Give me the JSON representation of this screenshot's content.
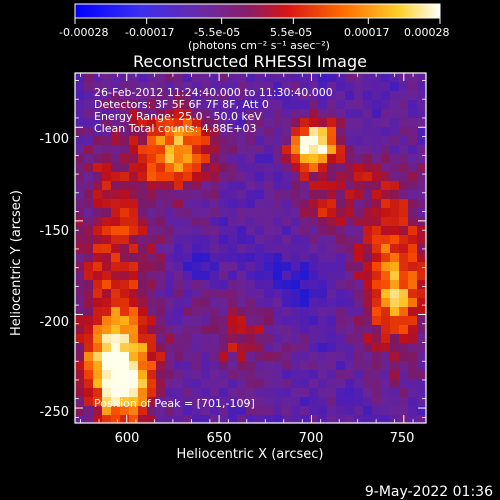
{
  "colorbar": {
    "tick_labels": [
      "-0.00028",
      "-0.00017",
      "-5.5e-05",
      "5.5e-05",
      "0.00017",
      "0.00028"
    ],
    "tick_values": [
      -0.00028,
      -0.00017,
      -5.5e-05,
      5.5e-05,
      0.00017,
      0.00028
    ],
    "range": [
      -0.00028,
      0.00028
    ],
    "units_label": "(photons cm⁻² s⁻¹ asec⁻²)",
    "colors": [
      "#0000ff",
      "#5a2bd8",
      "#7a2a9c",
      "#d11f1f",
      "#ff6a00",
      "#ffe04a",
      "#ffffff"
    ]
  },
  "title": "Reconstructed RHESSI Image",
  "info_lines": [
    "26-Feb-2012 11:24:40.000 to 11:30:40.000",
    "Detectors: 3F 5F 6F 7F 8F, Att 0",
    "Energy Range: 25.0 - 50.0 keV",
    "Clean     Total counts: 4.88E+03"
  ],
  "peak_label": "Position of Peak = [701,-109]",
  "footer_timestamp": "9-May-2022 01:36",
  "axes": {
    "xlabel": "Heliocentric X (arcsec)",
    "ylabel": "Heliocentric Y (arcsec)",
    "x_ticks": [
      "600",
      "650",
      "700",
      "750"
    ],
    "y_ticks": [
      "-100",
      "-150",
      "-200",
      "-250"
    ],
    "x_tick_values": [
      600,
      650,
      700,
      750
    ],
    "y_tick_values": [
      -100,
      -150,
      -200,
      -250
    ],
    "xlim": [
      572,
      762
    ],
    "ylim": [
      -258,
      -71
    ]
  },
  "image_regions": [
    {
      "name": "north-east-cluster",
      "x": 628,
      "y": -112,
      "intensity": 0.72
    },
    {
      "name": "peak-source",
      "x": 701,
      "y": -109,
      "intensity": 1.0
    },
    {
      "name": "west-source",
      "x": 745,
      "y": -183,
      "intensity": 0.78
    },
    {
      "name": "southwest-source",
      "x": 596,
      "y": -232,
      "intensity": 0.92
    },
    {
      "name": "south-central-source",
      "x": 664,
      "y": -210,
      "intensity": 0.48
    },
    {
      "name": "central-bridge",
      "x": 705,
      "y": -145,
      "intensity": 0.44
    }
  ]
}
